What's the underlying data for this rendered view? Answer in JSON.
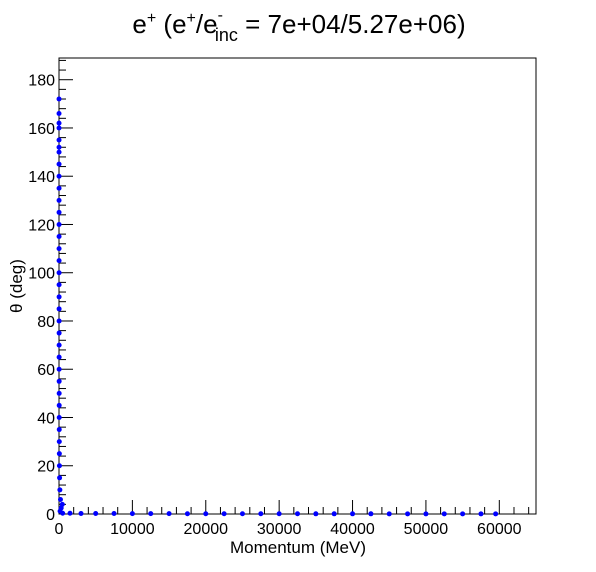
{
  "chart_data": {
    "type": "scatter",
    "title": {
      "main": "e",
      "sup1": "+",
      "mid": " (e",
      "sup2": "+",
      "slash": "/e",
      "sup3": "-",
      "sub": "inc",
      "tail": " = 7e+04/5.27e+06)"
    },
    "xlabel": "Momentum (MeV)",
    "ylabel": "θ (deg)",
    "xlim": [
      0,
      65000
    ],
    "ylim": [
      0,
      189
    ],
    "x_ticks": [
      "0",
      "10000",
      "20000",
      "30000",
      "40000",
      "50000",
      "60000"
    ],
    "x_tick_values": [
      0,
      10000,
      20000,
      30000,
      40000,
      50000,
      60000
    ],
    "y_ticks": [
      "0",
      "20",
      "40",
      "60",
      "80",
      "100",
      "120",
      "140",
      "160",
      "180"
    ],
    "y_tick_values": [
      0,
      20,
      40,
      60,
      80,
      100,
      120,
      140,
      160,
      180
    ],
    "marker_color": "#0000ff",
    "series": [
      {
        "points": [
          [
            500,
            0.3
          ],
          [
            1500,
            0.3
          ],
          [
            3000,
            0.2
          ],
          [
            5000,
            0.2
          ],
          [
            7500,
            0.2
          ],
          [
            10000,
            0.15
          ],
          [
            12500,
            0.15
          ],
          [
            15000,
            0.15
          ],
          [
            17500,
            0.1
          ],
          [
            20000,
            0.1
          ],
          [
            22500,
            0.1
          ],
          [
            25000,
            0.1
          ],
          [
            27500,
            0.1
          ],
          [
            30000,
            0.1
          ],
          [
            32500,
            0.1
          ],
          [
            35000,
            0.08
          ],
          [
            37500,
            0.08
          ],
          [
            40000,
            0.08
          ],
          [
            42500,
            0.08
          ],
          [
            45000,
            0.06
          ],
          [
            47500,
            0.06
          ],
          [
            50000,
            0.06
          ],
          [
            52500,
            0.05
          ],
          [
            55000,
            0.05
          ],
          [
            57500,
            0.05
          ],
          [
            59500,
            0.04
          ],
          [
            150,
            1.2
          ],
          [
            300,
            2.5
          ],
          [
            450,
            4
          ],
          [
            200,
            6
          ],
          [
            120,
            10
          ],
          [
            80,
            15
          ],
          [
            60,
            20
          ],
          [
            50,
            25
          ],
          [
            40,
            30
          ],
          [
            35,
            35
          ],
          [
            30,
            40
          ],
          [
            28,
            45
          ],
          [
            25,
            50
          ],
          [
            22,
            55
          ],
          [
            20,
            60
          ],
          [
            18,
            65
          ],
          [
            17,
            70
          ],
          [
            16,
            75
          ],
          [
            15,
            80
          ],
          [
            14,
            85
          ],
          [
            13,
            90
          ],
          [
            12,
            95
          ],
          [
            11,
            100
          ],
          [
            10,
            105
          ],
          [
            10,
            110
          ],
          [
            9,
            115
          ],
          [
            9,
            120
          ],
          [
            8,
            125
          ],
          [
            8,
            130
          ],
          [
            7,
            135
          ],
          [
            7,
            140
          ],
          [
            6,
            145
          ],
          [
            6,
            150
          ],
          [
            5,
            152
          ],
          [
            5,
            155
          ],
          [
            4,
            160
          ],
          [
            4,
            162
          ],
          [
            3,
            166
          ],
          [
            3,
            172
          ]
        ]
      }
    ]
  }
}
